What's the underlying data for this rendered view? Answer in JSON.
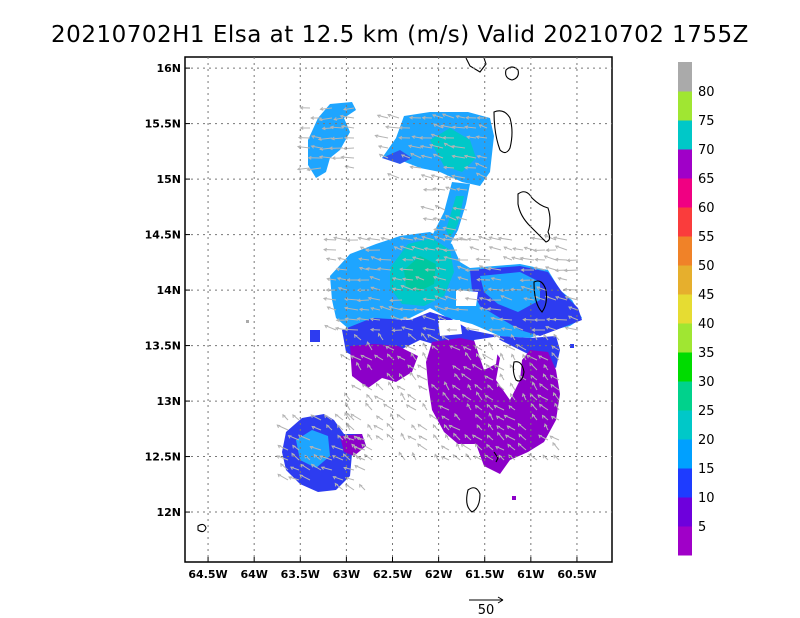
{
  "title": "20210702H1 Elsa at 12.5 km (m/s) Valid 20210702 1755Z",
  "map": {
    "lon_ticks": [
      {
        "value": -64.5,
        "label": "64.5W"
      },
      {
        "value": -64.0,
        "label": "64W"
      },
      {
        "value": -63.5,
        "label": "63.5W"
      },
      {
        "value": -63.0,
        "label": "63W"
      },
      {
        "value": -62.5,
        "label": "62.5W"
      },
      {
        "value": -62.0,
        "label": "62W"
      },
      {
        "value": -61.5,
        "label": "61.5W"
      },
      {
        "value": -61.0,
        "label": "61W"
      },
      {
        "value": -60.5,
        "label": "60.5W"
      }
    ],
    "lat_ticks": [
      {
        "value": 12.0,
        "label": "12N"
      },
      {
        "value": 12.5,
        "label": "12.5N"
      },
      {
        "value": 13.0,
        "label": "13N"
      },
      {
        "value": 13.5,
        "label": "13.5N"
      },
      {
        "value": 14.0,
        "label": "14N"
      },
      {
        "value": 14.5,
        "label": "14.5N"
      },
      {
        "value": 15.0,
        "label": "15N"
      },
      {
        "value": 15.5,
        "label": "15.5N"
      },
      {
        "value": 16.0,
        "label": "16N"
      }
    ],
    "lon_range": [
      -64.75,
      -60.12
    ],
    "lat_range": [
      11.55,
      16.1
    ],
    "gridlines": "dotted"
  },
  "colorbar": {
    "labels": [
      "5",
      "10",
      "15",
      "20",
      "25",
      "30",
      "35",
      "40",
      "45",
      "50",
      "55",
      "60",
      "65",
      "70",
      "75",
      "80"
    ],
    "colors": [
      "#a000c8",
      "#6e00dc",
      "#1e3cff",
      "#00a0ff",
      "#00c8c8",
      "#00d28c",
      "#00dc00",
      "#a0e632",
      "#e6dc32",
      "#e6af2d",
      "#f08228",
      "#fa3c3c",
      "#f00082",
      "#a000c8",
      "#00c8c8",
      "#a0e632",
      "#aaaaaa"
    ]
  },
  "vector_scale": {
    "label": "50"
  }
}
